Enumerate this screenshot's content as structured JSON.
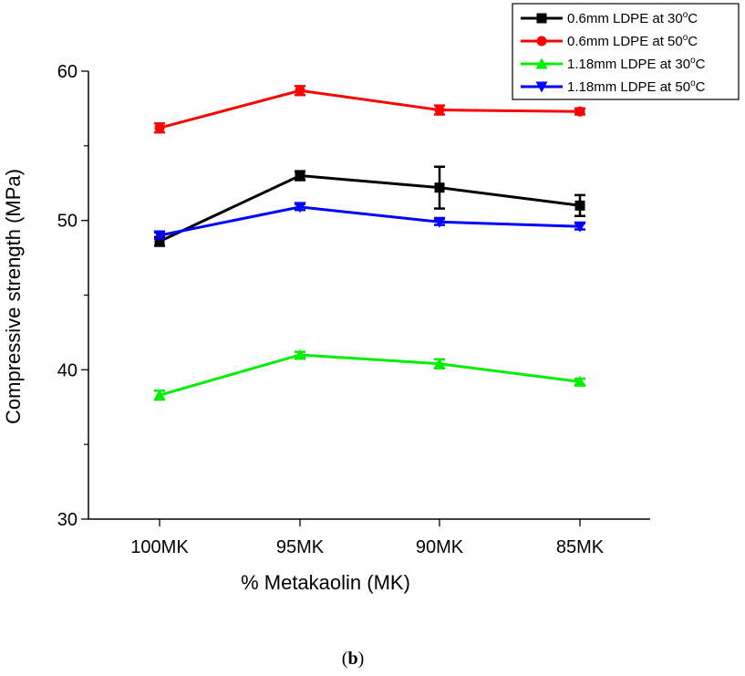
{
  "chart_data": {
    "type": "line",
    "title": "",
    "xlabel": "% Metakaolin (MK)",
    "ylabel": "Compressive strength (MPa)",
    "categories": [
      "100MK",
      "95MK",
      "90MK",
      "85MK"
    ],
    "ylim": [
      30,
      60
    ],
    "yticks": [
      30,
      40,
      50,
      60
    ],
    "grid": false,
    "legend_position": "top-right",
    "series": [
      {
        "name": "0.6mm LDPE at 30",
        "unit_sup": "o",
        "unit_tail": "C",
        "color": "#000000",
        "marker": "square",
        "values": [
          48.6,
          53.0,
          52.2,
          51.0
        ],
        "errors": [
          0.3,
          0.3,
          1.4,
          0.7
        ]
      },
      {
        "name": "0.6mm LDPE at 50",
        "unit_sup": "o",
        "unit_tail": "C",
        "color": "#ff0000",
        "marker": "circle",
        "values": [
          56.2,
          58.7,
          57.4,
          57.3
        ],
        "errors": [
          0.3,
          0.3,
          0.3,
          0.2
        ]
      },
      {
        "name": "1.18mm LDPE at 30",
        "unit_sup": "o",
        "unit_tail": "C",
        "color": "#00ee00",
        "marker": "triangle-up",
        "values": [
          38.3,
          41.0,
          40.4,
          39.2
        ],
        "errors": [
          0.3,
          0.2,
          0.3,
          0.2
        ]
      },
      {
        "name": "1.18mm LDPE at 50",
        "unit_sup": "o",
        "unit_tail": "C",
        "color": "#0000ff",
        "marker": "triangle-down",
        "values": [
          49.0,
          50.9,
          49.9,
          49.6
        ],
        "errors": [
          0.2,
          0.2,
          0.2,
          0.2
        ]
      }
    ]
  },
  "caption": {
    "open": "(",
    "letter": "b",
    "close": ")"
  }
}
